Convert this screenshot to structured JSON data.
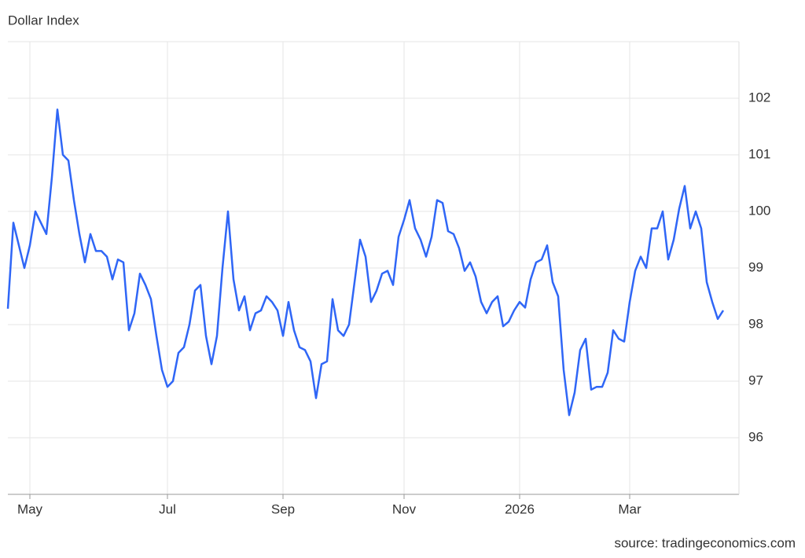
{
  "chart_data": {
    "type": "line",
    "title": "Dollar Index",
    "source": "source: tradingeconomics.com",
    "color": "#2f66f6",
    "grid": true,
    "ylim": [
      95,
      103
    ],
    "yticks": [
      96,
      97,
      98,
      99,
      100,
      101,
      102
    ],
    "categories": [
      null,
      null,
      null,
      null,
      "May",
      null,
      null,
      null,
      null,
      null,
      null,
      null,
      null,
      null,
      null,
      null,
      null,
      null,
      null,
      null,
      null,
      null,
      null,
      null,
      null,
      null,
      null,
      null,
      null,
      "Jul",
      null,
      null,
      null,
      null,
      null,
      null,
      null,
      null,
      null,
      null,
      null,
      null,
      null,
      null,
      null,
      null,
      null,
      null,
      null,
      null,
      "Sep",
      null,
      null,
      null,
      null,
      null,
      null,
      null,
      null,
      null,
      null,
      null,
      null,
      null,
      null,
      null,
      null,
      null,
      null,
      null,
      null,
      null,
      "Nov",
      null,
      null,
      null,
      null,
      null,
      null,
      null,
      null,
      null,
      null,
      null,
      null,
      null,
      null,
      null,
      null,
      null,
      null,
      null,
      null,
      "2026",
      null,
      null,
      null,
      null,
      null,
      null,
      null,
      null,
      null,
      null,
      null,
      null,
      null,
      null,
      null,
      null,
      null,
      null,
      null,
      "Mar",
      null,
      null,
      null,
      null,
      null,
      null,
      null,
      null,
      null,
      null,
      null,
      null,
      null,
      null,
      null,
      null,
      null
    ],
    "values": [
      98.28,
      99.8,
      99.4,
      99.0,
      99.4,
      100.0,
      99.8,
      99.6,
      100.6,
      101.8,
      101.0,
      100.9,
      100.2,
      99.6,
      99.1,
      99.6,
      99.3,
      99.3,
      99.2,
      98.8,
      99.15,
      99.1,
      97.9,
      98.2,
      98.9,
      98.7,
      98.45,
      97.8,
      97.2,
      96.9,
      97.0,
      97.5,
      97.6,
      98.0,
      98.6,
      98.7,
      97.8,
      97.3,
      97.8,
      99.0,
      100.0,
      98.8,
      98.25,
      98.5,
      97.9,
      98.2,
      98.25,
      98.5,
      98.4,
      98.25,
      97.8,
      98.4,
      97.9,
      97.6,
      97.55,
      97.35,
      96.7,
      97.3,
      97.35,
      98.45,
      97.9,
      97.8,
      98.0,
      98.75,
      99.5,
      99.2,
      98.4,
      98.6,
      98.9,
      98.95,
      98.7,
      99.55,
      99.85,
      100.2,
      99.7,
      99.5,
      99.2,
      99.55,
      100.2,
      100.15,
      99.65,
      99.6,
      99.35,
      98.95,
      99.1,
      98.85,
      98.4,
      98.2,
      98.4,
      98.5,
      97.97,
      98.05,
      98.25,
      98.4,
      98.3,
      98.8,
      99.1,
      99.15,
      99.4,
      98.75,
      98.5,
      97.2,
      96.4,
      96.8,
      97.55,
      97.75,
      96.85,
      96.9,
      96.9,
      97.15,
      97.9,
      97.75,
      97.7,
      98.4,
      98.95,
      99.2,
      99.0,
      99.7,
      99.7,
      100.0,
      99.15,
      99.5,
      100.05,
      100.45,
      99.7,
      100.0,
      99.7,
      98.75,
      98.4,
      98.1,
      98.25
    ]
  }
}
